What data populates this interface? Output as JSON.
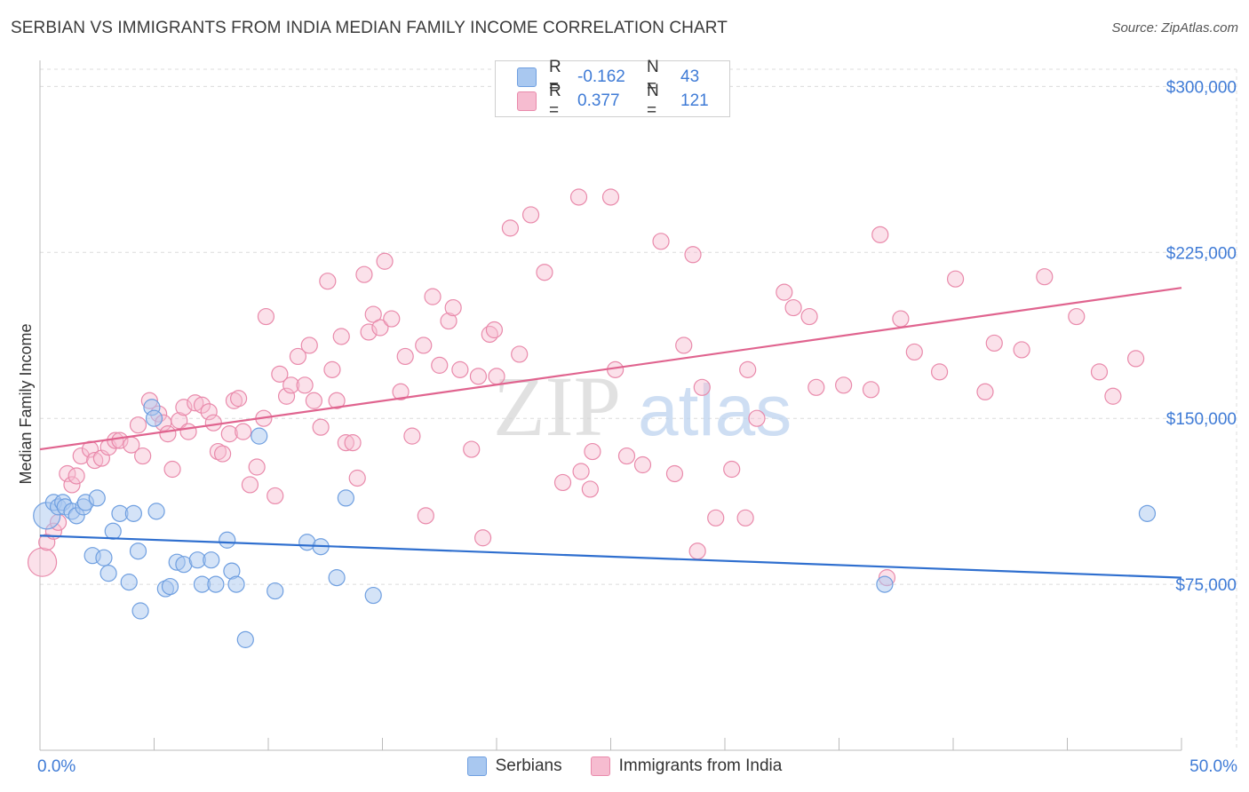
{
  "header": {
    "title": "SERBIAN VS IMMIGRANTS FROM INDIA MEDIAN FAMILY INCOME CORRELATION CHART",
    "source": "Source: ZipAtlas.com"
  },
  "watermark": {
    "part1": "ZIP",
    "part2": "atlas"
  },
  "legend": {
    "rows": [
      {
        "r_label": "R =",
        "r_value": "-0.162",
        "n_label": "N =",
        "n_value": "43"
      },
      {
        "r_label": "R =",
        "r_value": "0.377",
        "n_label": "N =",
        "n_value": "121"
      }
    ]
  },
  "bottom_legend": {
    "series1": "Serbians",
    "series2": "Immigrants from India"
  },
  "colors": {
    "serbians_fill": "#a9c8f0",
    "serbians_stroke": "#6f9fe0",
    "serbians_line": "#2f6fcf",
    "india_fill": "#f6bcd0",
    "india_stroke": "#e98aab",
    "india_line": "#e0648f",
    "tick_text": "#3f7bd6",
    "grid": "#dcdcdc"
  },
  "chart_data": {
    "type": "scatter",
    "title": "SERBIAN VS IMMIGRANTS FROM INDIA MEDIAN FAMILY INCOME CORRELATION CHART",
    "xlabel": "",
    "ylabel": "Median Family Income",
    "xlim": [
      0,
      50
    ],
    "ylim": [
      0,
      315000
    ],
    "x_tick_labels": [
      "0.0%",
      "50.0%"
    ],
    "y_ticks": [
      75000,
      150000,
      225000,
      300000
    ],
    "y_tick_labels": [
      "$75,000",
      "$150,000",
      "$225,000",
      "$300,000"
    ],
    "series": [
      {
        "name": "Serbians",
        "r": -0.162,
        "n": 43,
        "trend": {
          "x": [
            0,
            50
          ],
          "y": [
            97000,
            78000
          ]
        },
        "points": [
          [
            0.3,
            106000
          ],
          [
            0.6,
            112000
          ],
          [
            0.8,
            110000
          ],
          [
            1.0,
            112000
          ],
          [
            1.1,
            110000
          ],
          [
            1.4,
            108000
          ],
          [
            1.6,
            106000
          ],
          [
            1.9,
            110000
          ],
          [
            2.0,
            112000
          ],
          [
            2.5,
            114000
          ],
          [
            2.3,
            88000
          ],
          [
            2.8,
            87000
          ],
          [
            3.0,
            80000
          ],
          [
            3.2,
            99000
          ],
          [
            3.5,
            107000
          ],
          [
            3.9,
            76000
          ],
          [
            4.1,
            107000
          ],
          [
            4.3,
            90000
          ],
          [
            4.4,
            63000
          ],
          [
            4.9,
            155000
          ],
          [
            5.0,
            150000
          ],
          [
            5.1,
            108000
          ],
          [
            5.5,
            73000
          ],
          [
            5.7,
            74000
          ],
          [
            6.0,
            85000
          ],
          [
            6.3,
            84000
          ],
          [
            6.9,
            86000
          ],
          [
            7.1,
            75000
          ],
          [
            7.5,
            86000
          ],
          [
            7.7,
            75000
          ],
          [
            8.2,
            95000
          ],
          [
            8.4,
            81000
          ],
          [
            8.6,
            75000
          ],
          [
            9.0,
            50000
          ],
          [
            9.6,
            142000
          ],
          [
            10.3,
            72000
          ],
          [
            11.7,
            94000
          ],
          [
            12.3,
            92000
          ],
          [
            13.0,
            78000
          ],
          [
            13.4,
            114000
          ],
          [
            14.6,
            70000
          ],
          [
            37.0,
            75000
          ],
          [
            48.5,
            107000
          ]
        ]
      },
      {
        "name": "Immigrants from India",
        "r": 0.377,
        "n": 121,
        "trend": {
          "x": [
            0,
            50
          ],
          "y": [
            136000,
            209000
          ]
        },
        "points": [
          [
            0.1,
            85000
          ],
          [
            0.3,
            94000
          ],
          [
            0.6,
            99000
          ],
          [
            0.8,
            103000
          ],
          [
            1.2,
            125000
          ],
          [
            1.4,
            120000
          ],
          [
            1.6,
            124000
          ],
          [
            1.8,
            133000
          ],
          [
            2.2,
            136000
          ],
          [
            2.4,
            131000
          ],
          [
            2.7,
            132000
          ],
          [
            3.0,
            137000
          ],
          [
            3.3,
            140000
          ],
          [
            3.5,
            140000
          ],
          [
            4.0,
            138000
          ],
          [
            4.3,
            147000
          ],
          [
            4.5,
            133000
          ],
          [
            4.8,
            158000
          ],
          [
            5.2,
            152000
          ],
          [
            5.4,
            148000
          ],
          [
            5.6,
            143000
          ],
          [
            5.8,
            127000
          ],
          [
            6.1,
            149000
          ],
          [
            6.3,
            155000
          ],
          [
            6.5,
            144000
          ],
          [
            6.8,
            157000
          ],
          [
            7.1,
            156000
          ],
          [
            7.4,
            153000
          ],
          [
            7.6,
            148000
          ],
          [
            7.8,
            135000
          ],
          [
            8.0,
            134000
          ],
          [
            8.3,
            143000
          ],
          [
            8.5,
            158000
          ],
          [
            8.7,
            159000
          ],
          [
            8.9,
            144000
          ],
          [
            9.2,
            120000
          ],
          [
            9.5,
            128000
          ],
          [
            9.8,
            150000
          ],
          [
            9.9,
            196000
          ],
          [
            10.3,
            115000
          ],
          [
            10.5,
            170000
          ],
          [
            10.8,
            160000
          ],
          [
            11.0,
            165000
          ],
          [
            11.3,
            178000
          ],
          [
            11.6,
            165000
          ],
          [
            11.8,
            183000
          ],
          [
            12.0,
            158000
          ],
          [
            12.3,
            146000
          ],
          [
            12.6,
            212000
          ],
          [
            12.8,
            172000
          ],
          [
            13.0,
            158000
          ],
          [
            13.2,
            187000
          ],
          [
            13.4,
            139000
          ],
          [
            13.7,
            139000
          ],
          [
            13.9,
            123000
          ],
          [
            14.2,
            215000
          ],
          [
            14.4,
            189000
          ],
          [
            14.6,
            197000
          ],
          [
            14.9,
            191000
          ],
          [
            15.1,
            221000
          ],
          [
            15.4,
            195000
          ],
          [
            15.8,
            162000
          ],
          [
            16.0,
            178000
          ],
          [
            16.3,
            142000
          ],
          [
            16.8,
            183000
          ],
          [
            16.9,
            106000
          ],
          [
            17.2,
            205000
          ],
          [
            17.5,
            174000
          ],
          [
            17.9,
            194000
          ],
          [
            18.1,
            200000
          ],
          [
            18.4,
            172000
          ],
          [
            18.9,
            136000
          ],
          [
            19.2,
            169000
          ],
          [
            19.7,
            188000
          ],
          [
            19.9,
            190000
          ],
          [
            20.0,
            169000
          ],
          [
            20.6,
            236000
          ],
          [
            21.0,
            179000
          ],
          [
            21.5,
            242000
          ],
          [
            22.1,
            216000
          ],
          [
            22.9,
            121000
          ],
          [
            23.6,
            250000
          ],
          [
            24.1,
            118000
          ],
          [
            25.0,
            250000
          ],
          [
            25.2,
            172000
          ],
          [
            25.7,
            133000
          ],
          [
            26.4,
            129000
          ],
          [
            27.2,
            230000
          ],
          [
            27.8,
            125000
          ],
          [
            28.2,
            183000
          ],
          [
            28.6,
            224000
          ],
          [
            28.8,
            90000
          ],
          [
            29.6,
            105000
          ],
          [
            30.3,
            127000
          ],
          [
            30.9,
            105000
          ],
          [
            31.4,
            150000
          ],
          [
            32.6,
            207000
          ],
          [
            33.0,
            200000
          ],
          [
            33.7,
            196000
          ],
          [
            34.0,
            164000
          ],
          [
            35.2,
            165000
          ],
          [
            36.4,
            163000
          ],
          [
            36.8,
            233000
          ],
          [
            38.3,
            180000
          ],
          [
            40.1,
            213000
          ],
          [
            41.4,
            162000
          ],
          [
            41.8,
            184000
          ],
          [
            43.0,
            181000
          ],
          [
            44.0,
            214000
          ],
          [
            45.4,
            196000
          ],
          [
            46.4,
            171000
          ],
          [
            47.0,
            160000
          ],
          [
            48.0,
            177000
          ],
          [
            31.0,
            172000
          ],
          [
            37.7,
            195000
          ],
          [
            39.4,
            171000
          ],
          [
            29.0,
            164000
          ],
          [
            24.2,
            135000
          ],
          [
            23.7,
            126000
          ],
          [
            19.4,
            96000
          ],
          [
            37.1,
            78000
          ]
        ]
      }
    ]
  }
}
